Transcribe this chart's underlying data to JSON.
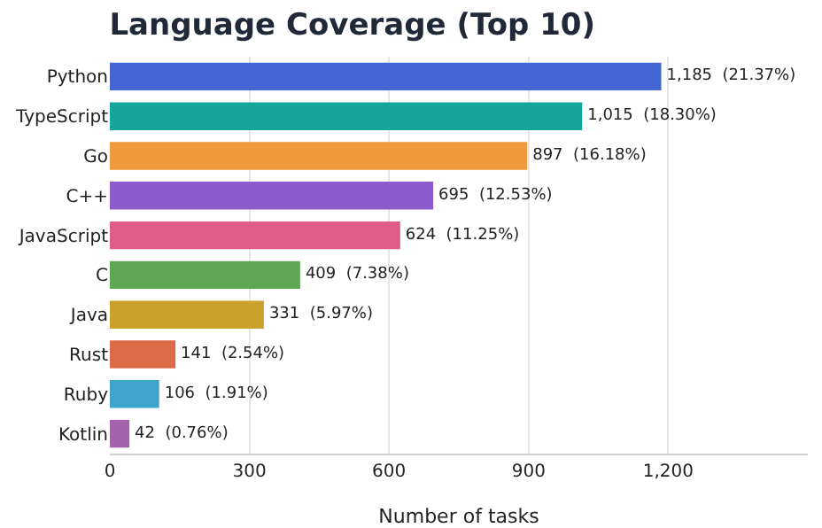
{
  "chart_data": {
    "type": "bar",
    "orientation": "horizontal",
    "title": "Language Coverage (Top 10)",
    "xlabel": "Number of tasks",
    "categories": [
      "Python",
      "TypeScript",
      "Go",
      "C++",
      "JavaScript",
      "C",
      "Java",
      "Rust",
      "Ruby",
      "Kotlin"
    ],
    "values": [
      1185,
      1015,
      897,
      695,
      624,
      409,
      331,
      141,
      106,
      42
    ],
    "colors": [
      "#4466d4",
      "#14a69b",
      "#f09a3c",
      "#8d5ccc",
      "#e05c88",
      "#5ea653",
      "#c9a12c",
      "#de6b47",
      "#3ea5cc",
      "#a562ad"
    ],
    "value_labels": [
      "1,185  (21.37%)",
      "1,015  (18.30%)",
      "897  (16.18%)",
      "695  (12.53%)",
      "624  (11.25%)",
      "409  (7.38%)",
      "331  (5.97%)",
      "141  (2.54%)",
      "106  (1.91%)",
      "42  (0.76%)"
    ],
    "xlim": [
      0,
      1500
    ],
    "xticks": [
      0,
      300,
      600,
      900,
      {
        "value": 1200,
        "label": "1,200"
      }
    ],
    "grid": "x"
  }
}
